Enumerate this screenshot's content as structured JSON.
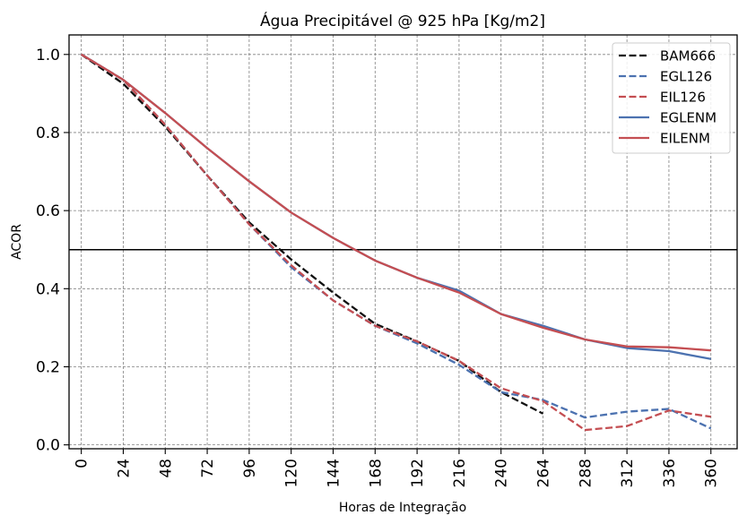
{
  "chart_data": {
    "type": "line",
    "title": "Água Precipitável @ 925 hPa [Kg/m2]",
    "xlabel": "Horas de Integração",
    "ylabel": "ACOR",
    "xlim": [
      -7,
      375
    ],
    "ylim": [
      -0.01,
      1.05
    ],
    "x_ticks": [
      0,
      24,
      48,
      72,
      96,
      120,
      144,
      168,
      192,
      216,
      240,
      264,
      288,
      312,
      336,
      360
    ],
    "y_ticks": [
      0.0,
      0.2,
      0.4,
      0.6,
      0.8,
      1.0
    ],
    "y_tick_labels": [
      "0.0",
      "0.2",
      "0.4",
      "0.6",
      "0.8",
      "1.0"
    ],
    "grid": true,
    "legend_position": "top-right",
    "reference_line": {
      "y": 0.5,
      "color": "#000000"
    },
    "series": [
      {
        "name": "BAM666",
        "color": "#111111",
        "dash": "dashed",
        "x": [
          0,
          24,
          48,
          72,
          96,
          120,
          144,
          168,
          192,
          216,
          240,
          264
        ],
        "values": [
          1.0,
          0.925,
          0.815,
          0.69,
          0.57,
          0.475,
          0.39,
          0.31,
          0.265,
          0.215,
          0.135,
          0.08
        ]
      },
      {
        "name": "EGL126",
        "color": "#4c72b0",
        "dash": "dashed",
        "x": [
          0,
          24,
          48,
          72,
          96,
          120,
          144,
          168,
          192,
          216,
          240,
          264,
          288,
          312,
          336,
          360
        ],
        "values": [
          1.0,
          0.935,
          0.82,
          0.69,
          0.565,
          0.455,
          0.37,
          0.305,
          0.26,
          0.205,
          0.135,
          0.115,
          0.07,
          0.085,
          0.092,
          0.042
        ]
      },
      {
        "name": "EIL126",
        "color": "#c44e52",
        "dash": "dashed",
        "x": [
          0,
          24,
          48,
          72,
          96,
          120,
          144,
          168,
          192,
          216,
          240,
          264,
          288,
          312,
          336,
          360
        ],
        "values": [
          1.0,
          0.935,
          0.82,
          0.69,
          0.565,
          0.46,
          0.37,
          0.305,
          0.265,
          0.215,
          0.145,
          0.112,
          0.038,
          0.048,
          0.088,
          0.072
        ]
      },
      {
        "name": "EGLENM",
        "color": "#4c72b0",
        "dash": "solid",
        "x": [
          0,
          24,
          48,
          72,
          96,
          120,
          144,
          168,
          192,
          216,
          240,
          264,
          288,
          312,
          336,
          360
        ],
        "values": [
          1.0,
          0.935,
          0.85,
          0.76,
          0.675,
          0.595,
          0.53,
          0.472,
          0.428,
          0.395,
          0.335,
          0.305,
          0.27,
          0.248,
          0.24,
          0.22
        ]
      },
      {
        "name": "EILENM",
        "color": "#c44e52",
        "dash": "solid",
        "x": [
          0,
          24,
          48,
          72,
          96,
          120,
          144,
          168,
          192,
          216,
          240,
          264,
          288,
          312,
          336,
          360
        ],
        "values": [
          1.0,
          0.935,
          0.85,
          0.76,
          0.675,
          0.595,
          0.53,
          0.472,
          0.428,
          0.39,
          0.335,
          0.3,
          0.27,
          0.252,
          0.25,
          0.242
        ]
      }
    ]
  }
}
